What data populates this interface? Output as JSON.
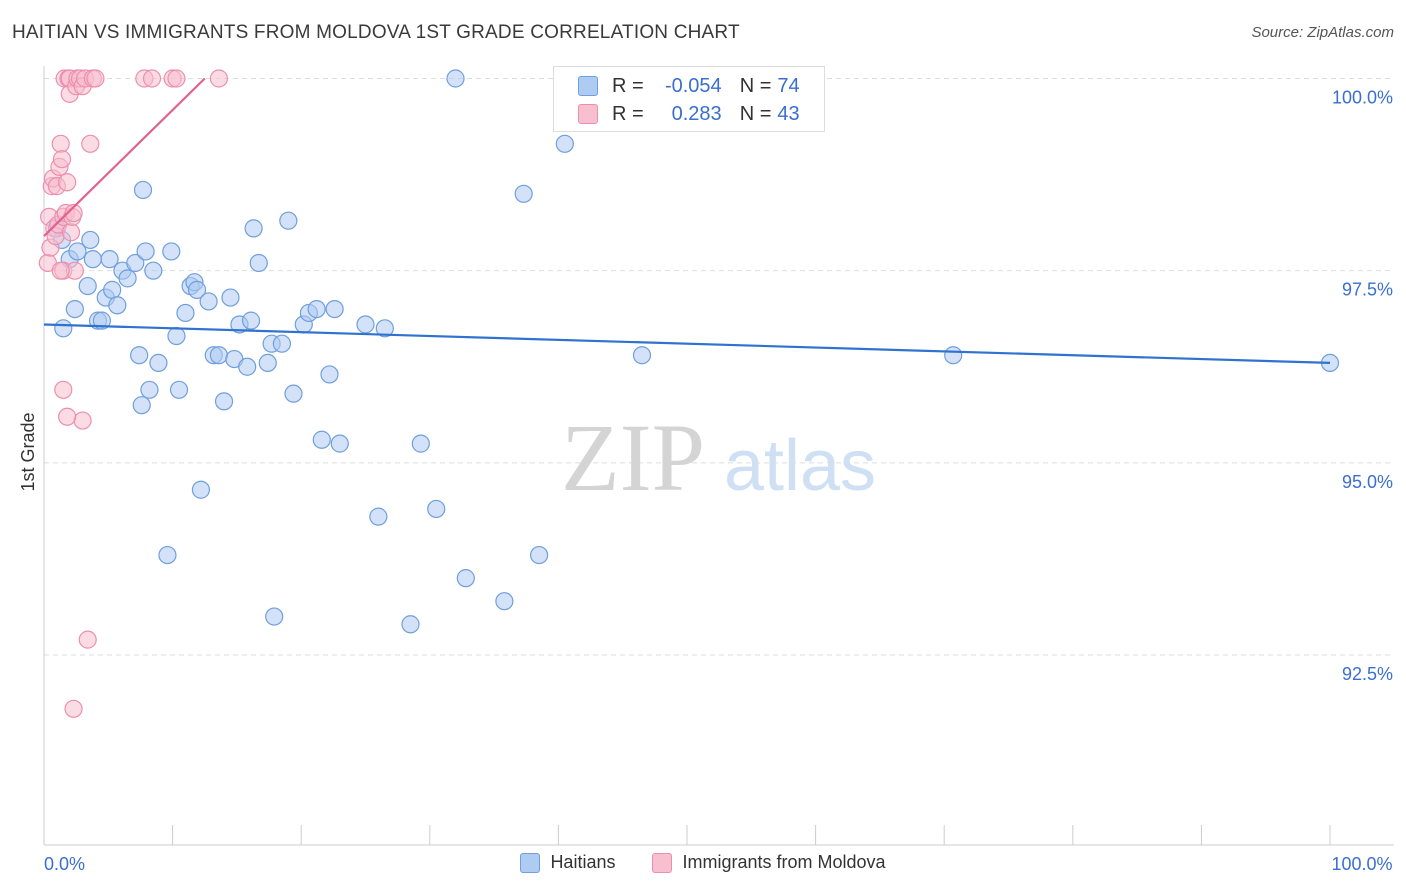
{
  "title": "HAITIAN VS IMMIGRANTS FROM MOLDOVA 1ST GRADE CORRELATION CHART",
  "source": "Source: ZipAtlas.com",
  "watermark": {
    "zip": "ZIP",
    "atlas": "atlas"
  },
  "legend_box": {
    "r_label": "R =",
    "n_label": "N =",
    "rows": [
      {
        "series": "Haitians",
        "r": "-0.054",
        "n": "74"
      },
      {
        "series": "Immigrants from Moldova",
        "r": "0.283",
        "n": "43"
      }
    ]
  },
  "colors": {
    "haitians_fill": "#aecbf2",
    "haitians_stroke": "#6f9fdc",
    "haitians_line": "#2f72cf",
    "moldova_fill": "#f8bfd0",
    "moldova_stroke": "#ec8fae",
    "moldova_line": "#e2628e",
    "value_text": "#3a6fd0",
    "grid": "#dddddd"
  },
  "chart_data": {
    "type": "scatter",
    "title": "HAITIAN VS IMMIGRANTS FROM MOLDOVA 1ST GRADE CORRELATION CHART",
    "xlabel": "",
    "ylabel": "1st Grade",
    "xlim": [
      0,
      100
    ],
    "ylim": [
      90.3,
      100.4
    ],
    "x_tick_labels": [
      {
        "value": 0,
        "label": "0.0%"
      },
      {
        "value": 100,
        "label": "100.0%"
      }
    ],
    "y_tick_labels": [
      {
        "value": 100,
        "label": "100.0%"
      },
      {
        "value": 97.5,
        "label": "97.5%"
      },
      {
        "value": 95,
        "label": "95.0%"
      },
      {
        "value": 92.5,
        "label": "92.5%"
      }
    ],
    "grid": true,
    "series": [
      {
        "name": "Haitians",
        "x": [
          1.0,
          1.4,
          1.5,
          2.0,
          2.4,
          2.6,
          3.4,
          3.6,
          3.8,
          4.2,
          4.5,
          4.8,
          5.1,
          5.3,
          5.7,
          6.1,
          6.5,
          7.1,
          7.4,
          7.6,
          7.9,
          8.2,
          8.5,
          8.9,
          9.6,
          9.9,
          10.3,
          10.5,
          11.0,
          11.4,
          11.7,
          11.9,
          12.2,
          12.8,
          13.2,
          13.6,
          14.0,
          14.5,
          14.8,
          15.2,
          15.8,
          16.1,
          16.3,
          16.7,
          17.4,
          17.7,
          17.9,
          18.5,
          19.0,
          19.4,
          20.2,
          20.6,
          21.2,
          21.6,
          22.2,
          22.6,
          23.0,
          25.0,
          26.0,
          26.5,
          28.5,
          29.3,
          30.5,
          32.0,
          32.8,
          35.8,
          37.3,
          38.5,
          40.5,
          41.2,
          46.5,
          70.7,
          100.0,
          7.7
        ],
        "y": [
          98.05,
          97.9,
          96.75,
          97.65,
          97.0,
          97.75,
          97.3,
          97.9,
          97.65,
          96.85,
          96.85,
          97.15,
          97.65,
          97.25,
          97.05,
          97.5,
          97.4,
          97.6,
          96.4,
          95.75,
          97.75,
          95.95,
          97.5,
          96.3,
          93.8,
          97.75,
          96.65,
          95.95,
          96.95,
          97.3,
          97.35,
          97.25,
          94.65,
          97.1,
          96.4,
          96.4,
          95.8,
          97.15,
          96.35,
          96.8,
          96.25,
          96.85,
          98.05,
          97.6,
          96.3,
          96.55,
          93.0,
          96.55,
          98.15,
          95.9,
          96.8,
          96.95,
          97.0,
          95.3,
          96.15,
          97.0,
          95.25,
          96.8,
          94.3,
          96.75,
          92.9,
          95.25,
          94.4,
          100.0,
          93.5,
          93.2,
          98.5,
          93.8,
          99.15,
          100.0,
          96.4,
          96.4,
          96.3,
          98.55
        ],
        "trendline": {
          "x1": 0,
          "y1": 96.8,
          "x2": 100,
          "y2": 96.3
        }
      },
      {
        "name": "Immigrants from Moldova",
        "x": [
          0.3,
          0.4,
          0.5,
          0.6,
          0.7,
          0.8,
          0.9,
          1.0,
          1.1,
          1.2,
          1.3,
          1.4,
          1.5,
          1.5,
          1.6,
          1.7,
          1.8,
          1.9,
          2.0,
          2.0,
          2.1,
          2.2,
          2.3,
          2.4,
          2.5,
          2.6,
          2.8,
          3.0,
          3.0,
          3.2,
          3.4,
          3.6,
          3.8,
          4.0,
          1.8,
          1.3,
          1.5,
          7.8,
          8.4,
          10.0,
          10.3,
          13.6,
          2.3
        ],
        "y": [
          97.6,
          98.2,
          97.8,
          98.6,
          98.7,
          98.05,
          97.95,
          98.6,
          98.1,
          98.85,
          99.15,
          98.95,
          97.5,
          98.2,
          100.0,
          98.25,
          98.65,
          100.0,
          100.0,
          99.8,
          98.0,
          98.2,
          91.8,
          97.5,
          99.9,
          100.0,
          100.0,
          95.55,
          99.9,
          100.0,
          92.7,
          99.15,
          100.0,
          100.0,
          95.6,
          97.5,
          95.95,
          100.0,
          100.0,
          100.0,
          100.0,
          100.0,
          98.25
        ],
        "trendline": {
          "x1": 0,
          "y1": 97.95,
          "x2": 12.5,
          "y2": 100.0
        }
      }
    ]
  }
}
